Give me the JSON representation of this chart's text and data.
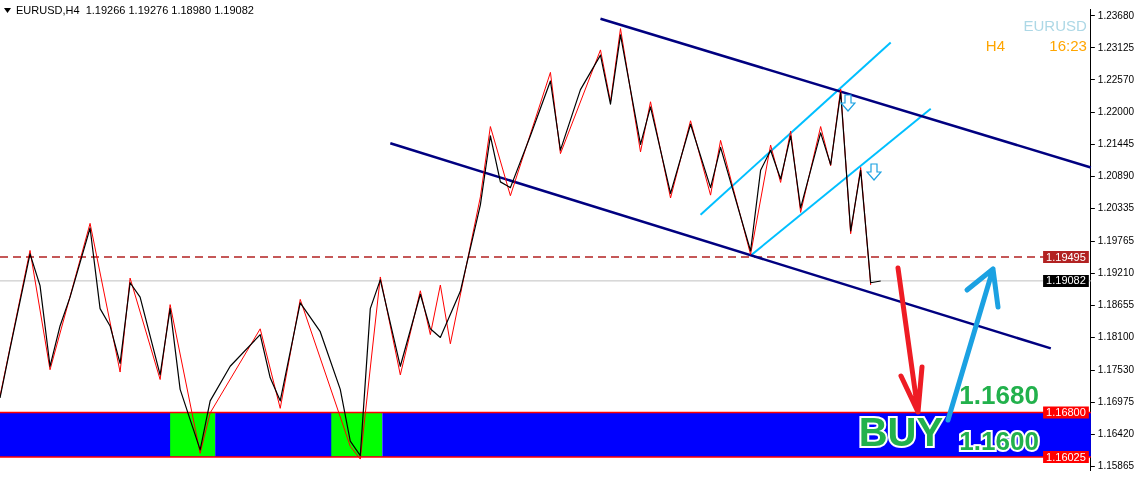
{
  "chart_data": {
    "type": "line",
    "title": "EURUSD,H4  1.19266 1.19276 1.18980 1.19082",
    "annotations": [
      "EURUSD",
      "H4",
      "16:23",
      "BUY",
      {
        "text": "1.1680",
        "y": 1.168
      },
      {
        "text": "1.1600",
        "y": 1.16
      }
    ],
    "categories": [
      null,
      null,
      null,
      null,
      null,
      null,
      null,
      null,
      null,
      null,
      null,
      null,
      null,
      null,
      null,
      null,
      null,
      null,
      null,
      null,
      null,
      null,
      null,
      null,
      null,
      null,
      null,
      null,
      null,
      null,
      null,
      null,
      null,
      null,
      null,
      null,
      null,
      null,
      null,
      null,
      null,
      null,
      null,
      null,
      null,
      null,
      null,
      null,
      null,
      null,
      null,
      null,
      null,
      null,
      null,
      null,
      null,
      null,
      null,
      null,
      null,
      null,
      null,
      null,
      null,
      null,
      null,
      null,
      null,
      null,
      null,
      null,
      null,
      null,
      null,
      null,
      null,
      null,
      null,
      null,
      null,
      null,
      null,
      null,
      null,
      null,
      null,
      null,
      null,
      null,
      null,
      null,
      null,
      null,
      null,
      null,
      null,
      null,
      null,
      null,
      null,
      null,
      null,
      null,
      null,
      null,
      null,
      null,
      null,
      null
    ],
    "ylim": [
      1.158,
      1.238
    ],
    "yticks": [
      {
        "value": 1.2368,
        "label": "1.23680"
      },
      {
        "value": 1.23125,
        "label": "1.23125"
      },
      {
        "value": 1.2257,
        "label": "1.22570"
      },
      {
        "value": 1.22,
        "label": "1.22000"
      },
      {
        "value": 1.21445,
        "label": "1.21445"
      },
      {
        "value": 1.2089,
        "label": "1.20890"
      },
      {
        "value": 1.20335,
        "label": "1.20335"
      },
      {
        "value": 1.19765,
        "label": "1.19765"
      },
      {
        "value": 1.1921,
        "label": "1.19210"
      },
      {
        "value": 1.18655,
        "label": "1.18655"
      },
      {
        "value": 1.181,
        "label": "1.18100"
      },
      {
        "value": 1.1753,
        "label": "1.17530"
      },
      {
        "value": 1.16975,
        "label": "1.16975"
      },
      {
        "value": 1.1642,
        "label": "1.16420"
      },
      {
        "value": 1.15865,
        "label": "1.15865"
      }
    ],
    "tick_labels": "y",
    "grid": false,
    "legend": false,
    "marker": "none",
    "ref_lines": [
      {
        "axis": "y",
        "value": 1.19495,
        "label": "1.19495",
        "color": "#b22222",
        "line_style": "dashed"
      },
      {
        "axis": "y",
        "value": 1.19082,
        "label": "1.19082",
        "color": "#c0c0c0",
        "line_style": "solid"
      },
      {
        "axis": "y",
        "value": 1.168,
        "label": "1.16800",
        "color": "#ff0000",
        "line_style": "solid"
      },
      {
        "axis": "y",
        "value": 1.16025,
        "label": "1.16025",
        "color": "#ff0000",
        "line_style": "solid"
      }
    ],
    "bands": [
      {
        "axis": "y",
        "from": 1.16025,
        "to": 1.168,
        "color": "#0000ff"
      }
    ],
    "series": [
      {
        "color": "#000000",
        "values": [
          1.1705,
          1.179,
          null,
          1.1955,
          1.19,
          1.176,
          1.183,
          1.188,
          null,
          1.2,
          1.186,
          1.183,
          1.1765,
          1.1905,
          1.188,
          null,
          1.1745,
          1.186,
          1.172,
          null,
          1.1615,
          1.17,
          null,
          1.176,
          null,
          null,
          1.1815,
          1.174,
          1.17,
          null,
          1.187,
          null,
          1.182,
          null,
          1.172,
          1.163,
          1.1605,
          1.186,
          1.191,
          null,
          1.176,
          null,
          1.1885,
          1.1825,
          1.181,
          null,
          1.189,
          null,
          1.204,
          1.216,
          1.208,
          1.207,
          null,
          1.216,
          null,
          1.2255,
          1.2135,
          null,
          1.224,
          null,
          1.23,
          1.2215,
          1.2335,
          null,
          1.2145,
          1.221,
          null,
          1.206,
          null,
          1.218,
          null,
          1.207,
          1.214,
          null,
          null,
          1.196,
          1.21,
          1.2135,
          1.2085,
          1.216,
          1.2035,
          null,
          1.2165,
          1.211,
          1.2235,
          1.1995,
          1.21,
          1.1905,
          1.1908,
          null,
          null,
          null,
          null,
          null,
          null,
          null,
          null,
          null,
          null,
          null,
          null,
          null,
          null,
          null,
          null,
          null,
          null,
          null,
          null,
          null
        ]
      },
      {
        "color": "#ff0000",
        "values": [
          1.1708,
          null,
          null,
          1.1961,
          null,
          1.1754,
          null,
          null,
          null,
          1.2008,
          null,
          null,
          1.175,
          1.1913,
          null,
          null,
          1.1737,
          1.1867,
          null,
          null,
          1.1609,
          1.1679,
          null,
          null,
          null,
          null,
          1.1825,
          null,
          1.1687,
          null,
          1.1876,
          null,
          null,
          null,
          null,
          1.1621,
          1.1599,
          null,
          1.1915,
          null,
          1.1745,
          null,
          1.1891,
          1.1815,
          1.1901,
          1.1799,
          null,
          null,
          1.2054,
          1.2176,
          null,
          1.2056,
          null,
          null,
          null,
          1.227,
          1.2129,
          null,
          null,
          null,
          1.2309,
          1.2219,
          1.2346,
          null,
          1.2132,
          1.2219,
          null,
          1.2052,
          null,
          1.2186,
          null,
          1.2057,
          1.2152,
          null,
          null,
          1.1954,
          null,
          1.2144,
          1.2079,
          1.2168,
          1.2027,
          null,
          1.2176,
          1.2108,
          1.2241,
          1.199,
          1.2105,
          1.1901,
          null,
          null,
          null,
          null,
          null,
          null,
          null,
          null,
          null,
          null,
          null,
          null,
          null,
          null,
          null,
          null,
          null,
          null,
          null,
          null,
          null,
          null
        ]
      },
      {
        "color": "#000080",
        "values": [
          null,
          null,
          null,
          null,
          null,
          null,
          null,
          null,
          null,
          null,
          null,
          null,
          null,
          null,
          null,
          null,
          null,
          null,
          null,
          null,
          null,
          null,
          null,
          null,
          null,
          null,
          null,
          null,
          null,
          null,
          null,
          null,
          null,
          null,
          null,
          null,
          null,
          null,
          null,
          null,
          null,
          null,
          null,
          null,
          null,
          null,
          null,
          null,
          null,
          null,
          null,
          null,
          null,
          null,
          null,
          null,
          null,
          null,
          null,
          null,
          1.2363,
          null,
          null,
          null,
          null,
          null,
          null,
          null,
          null,
          null,
          null,
          null,
          null,
          null,
          null,
          null,
          null,
          null,
          null,
          null,
          null,
          null,
          null,
          null,
          null,
          null,
          null,
          null,
          null,
          null,
          null,
          null,
          null,
          null,
          null,
          null,
          null,
          null,
          null,
          null,
          null,
          null,
          null,
          null,
          null,
          null,
          null,
          null,
          null,
          1.2105
        ]
      },
      {
        "color": "#000080",
        "values": [
          null,
          null,
          null,
          null,
          null,
          null,
          null,
          null,
          null,
          null,
          null,
          null,
          null,
          null,
          null,
          null,
          null,
          null,
          null,
          null,
          null,
          null,
          null,
          null,
          null,
          null,
          null,
          null,
          null,
          null,
          null,
          null,
          null,
          null,
          null,
          null,
          null,
          null,
          null,
          1.2147,
          null,
          null,
          null,
          null,
          null,
          null,
          null,
          null,
          null,
          null,
          null,
          null,
          null,
          null,
          null,
          null,
          null,
          null,
          null,
          null,
          null,
          null,
          null,
          null,
          null,
          null,
          null,
          null,
          null,
          null,
          null,
          null,
          null,
          null,
          null,
          null,
          null,
          null,
          null,
          null,
          null,
          null,
          null,
          null,
          null,
          null,
          null,
          null,
          null,
          null,
          null,
          null,
          null,
          null,
          null,
          null,
          null,
          null,
          null,
          null,
          null,
          null,
          null,
          null,
          null,
          1.1791,
          null,
          null,
          null,
          null
        ]
      },
      {
        "color": "#00bfff",
        "values": [
          null,
          null,
          null,
          null,
          null,
          null,
          null,
          null,
          null,
          null,
          null,
          null,
          null,
          null,
          null,
          null,
          null,
          null,
          null,
          null,
          null,
          null,
          null,
          null,
          null,
          null,
          null,
          null,
          null,
          null,
          null,
          null,
          null,
          null,
          null,
          null,
          null,
          null,
          null,
          null,
          null,
          null,
          null,
          null,
          null,
          null,
          null,
          null,
          null,
          null,
          null,
          null,
          null,
          null,
          null,
          null,
          null,
          null,
          null,
          null,
          null,
          null,
          null,
          null,
          null,
          null,
          null,
          null,
          null,
          null,
          1.2023,
          null,
          null,
          null,
          null,
          null,
          null,
          null,
          null,
          null,
          null,
          null,
          null,
          null,
          null,
          null,
          null,
          null,
          null,
          1.2322,
          null,
          null,
          null,
          null,
          null,
          null,
          null,
          null,
          null,
          null,
          null,
          null,
          null,
          null,
          null,
          null,
          null,
          null,
          null,
          null
        ]
      },
      {
        "color": "#00bfff",
        "values": [
          null,
          null,
          null,
          null,
          null,
          null,
          null,
          null,
          null,
          null,
          null,
          null,
          null,
          null,
          null,
          null,
          null,
          null,
          null,
          null,
          null,
          null,
          null,
          null,
          null,
          null,
          null,
          null,
          null,
          null,
          null,
          null,
          null,
          null,
          null,
          null,
          null,
          null,
          null,
          null,
          null,
          null,
          null,
          null,
          null,
          null,
          null,
          null,
          null,
          null,
          null,
          null,
          null,
          null,
          null,
          null,
          null,
          null,
          null,
          null,
          null,
          null,
          null,
          null,
          null,
          null,
          null,
          null,
          null,
          null,
          null,
          null,
          null,
          null,
          null,
          1.1952,
          null,
          null,
          null,
          null,
          null,
          null,
          null,
          null,
          null,
          null,
          null,
          null,
          null,
          null,
          null,
          null,
          null,
          1.2207,
          null,
          null,
          null,
          null,
          null,
          null,
          null,
          null,
          null,
          null,
          null,
          null,
          null,
          null,
          null,
          null
        ]
      }
    ]
  }
}
